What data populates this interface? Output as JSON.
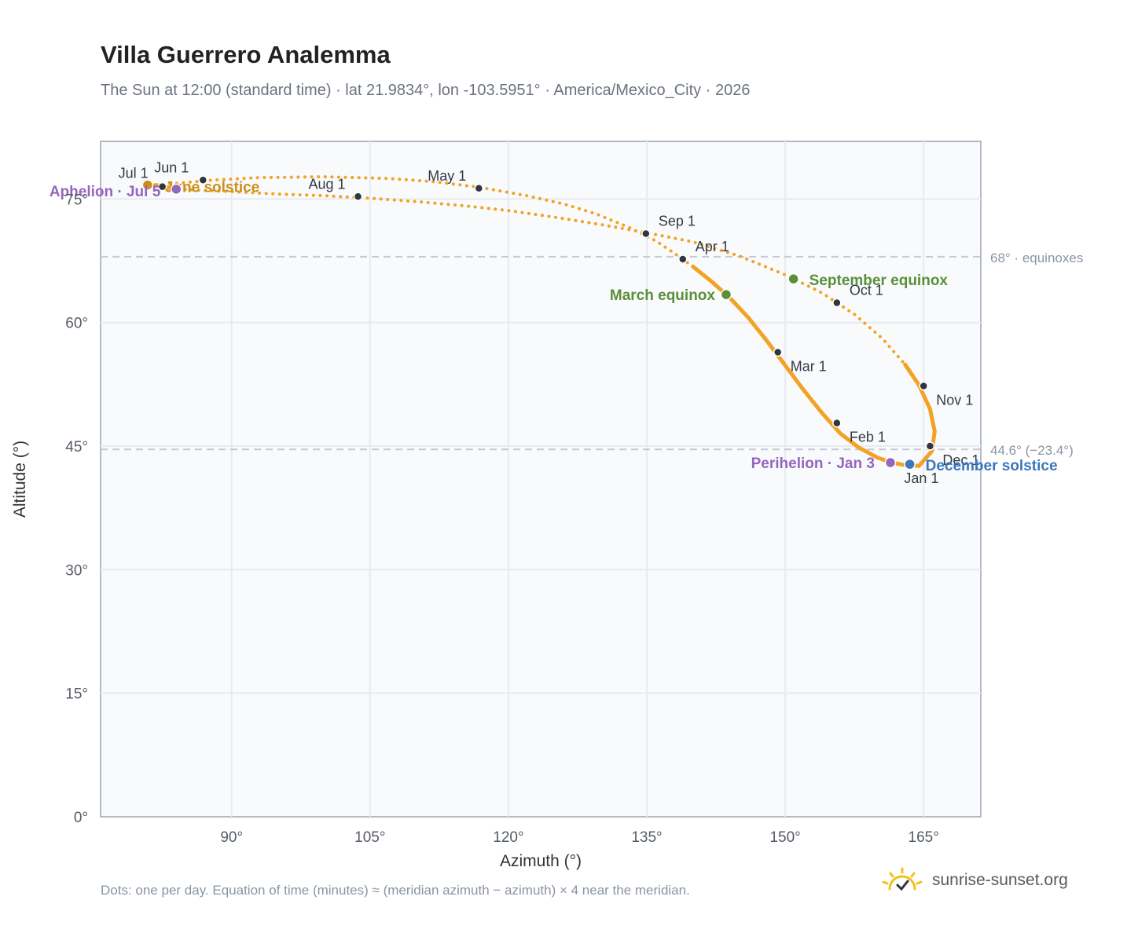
{
  "title": "Villa Guerrero Analemma",
  "subtitle": "The Sun at 12:00 (standard time) · lat 21.9834°, lon -103.5951° · America/Mexico_City · 2026",
  "footnote": "Dots: one per day. Equation of time (minutes) ≈ (meridian azimuth − azimuth) × 4 near the meridian.",
  "brand": {
    "text": "sunrise-sunset.org",
    "icon": "sun-check-icon"
  },
  "colors": {
    "curve": "#f2a325",
    "month_dot": "#2f3640",
    "equinox": "#5a8f3a",
    "december_solstice": "#3a77bd",
    "june_solstice": "#c9901c",
    "apsis": "#9467bd",
    "grid": "#e6ebf0",
    "plot_bg": "#f8fafc",
    "reference_line": "#c3cad2"
  },
  "chart_data": {
    "type": "scatter",
    "xlabel": "Azimuth (°)",
    "ylabel": "Altitude (°)",
    "xlim": [
      75.8,
      171.2
    ],
    "ylim": [
      0,
      82
    ],
    "xticks": [
      90,
      105,
      120,
      135,
      150,
      165
    ],
    "yticks": [
      0,
      15,
      30,
      45,
      60,
      75
    ],
    "xtick_labels": [
      "90°",
      "105°",
      "120°",
      "135°",
      "150°",
      "165°"
    ],
    "ytick_labels": [
      "0°",
      "15°",
      "30°",
      "45°",
      "60°",
      "75°"
    ],
    "grid": true,
    "reference_lines": [
      {
        "altitude": 68.0,
        "label": "68° · equinoxes"
      },
      {
        "altitude": 44.6,
        "label": "44.6° (−23.4°)"
      }
    ],
    "path_segments": [
      {
        "style": "solid",
        "points": [
          [
            164.5,
            42.6
          ],
          [
            163.0,
            42.7
          ],
          [
            161.5,
            43.0
          ],
          [
            160.0,
            43.6
          ],
          [
            158.0,
            44.8
          ],
          [
            156.0,
            46.5
          ],
          [
            154.0,
            49.0
          ],
          [
            152.0,
            51.8
          ],
          [
            150.0,
            54.8
          ],
          [
            148.0,
            57.8
          ],
          [
            146.0,
            60.6
          ],
          [
            144.0,
            63.0
          ],
          [
            142.0,
            65.0
          ],
          [
            140.0,
            66.8
          ]
        ]
      },
      {
        "style": "dotted",
        "points": [
          [
            140.0,
            66.8
          ],
          [
            138.0,
            68.4
          ],
          [
            136.0,
            69.9
          ],
          [
            133.0,
            71.6
          ],
          [
            129.5,
            73.2
          ],
          [
            126.0,
            74.4
          ],
          [
            122.0,
            75.4
          ],
          [
            117.0,
            76.4
          ],
          [
            112.0,
            77.1
          ],
          [
            107.0,
            77.5
          ],
          [
            100.0,
            77.7
          ],
          [
            93.0,
            77.6
          ],
          [
            88.0,
            77.3
          ],
          [
            84.0,
            76.9
          ],
          [
            81.0,
            76.7
          ]
        ]
      },
      {
        "style": "solid",
        "points": [
          [
            81.0,
            76.7
          ],
          [
            82.5,
            76.6
          ],
          [
            83.5,
            76.3
          ]
        ]
      },
      {
        "style": "dotted",
        "points": [
          [
            83.5,
            76.3
          ],
          [
            86.0,
            76.1
          ],
          [
            90.0,
            75.9
          ],
          [
            95.0,
            75.6
          ],
          [
            100.0,
            75.4
          ],
          [
            105.0,
            75.1
          ],
          [
            110.0,
            74.7
          ],
          [
            115.0,
            74.2
          ],
          [
            120.0,
            73.6
          ],
          [
            125.0,
            72.8
          ],
          [
            130.0,
            71.9
          ],
          [
            135.0,
            70.9
          ],
          [
            140.0,
            69.8
          ],
          [
            145.0,
            68.1
          ],
          [
            150.0,
            65.8
          ],
          [
            154.0,
            63.6
          ],
          [
            157.5,
            61.0
          ],
          [
            160.5,
            58.1
          ],
          [
            163.0,
            54.9
          ]
        ]
      },
      {
        "style": "solid",
        "points": [
          [
            163.0,
            54.9
          ],
          [
            164.5,
            52.4
          ],
          [
            165.7,
            49.5
          ],
          [
            166.2,
            46.8
          ],
          [
            165.9,
            44.4
          ],
          [
            164.5,
            42.6
          ]
        ]
      }
    ],
    "month_points": [
      {
        "label": "Jan 1",
        "x": 163.4,
        "y": 42.8
      },
      {
        "label": "Feb 1",
        "x": 155.6,
        "y": 47.8
      },
      {
        "label": "Mar 1",
        "x": 149.2,
        "y": 56.4
      },
      {
        "label": "Apr 1",
        "x": 138.9,
        "y": 67.7
      },
      {
        "label": "May 1",
        "x": 116.8,
        "y": 76.3
      },
      {
        "label": "Jun 1",
        "x": 86.9,
        "y": 77.3
      },
      {
        "label": "Jul 1",
        "x": 82.5,
        "y": 76.5
      },
      {
        "label": "Aug 1",
        "x": 103.7,
        "y": 75.3
      },
      {
        "label": "Sep 1",
        "x": 134.9,
        "y": 70.8
      },
      {
        "label": "Oct 1",
        "x": 155.6,
        "y": 62.4
      },
      {
        "label": "Nov 1",
        "x": 165.0,
        "y": 52.3
      },
      {
        "label": "Dec 1",
        "x": 165.7,
        "y": 45.0
      }
    ],
    "events": [
      {
        "label": "March equinox",
        "x": 143.6,
        "y": 63.4
      },
      {
        "label": "September equinox",
        "x": 150.9,
        "y": 65.3
      },
      {
        "label": "June solstice",
        "x": 80.9,
        "y": 76.7
      },
      {
        "label": "December solstice",
        "x": 163.5,
        "y": 42.8
      },
      {
        "label": "Perihelion · Jan 3",
        "x": 161.4,
        "y": 43.0
      },
      {
        "label": "Aphelion · Jul 5",
        "x": 84.0,
        "y": 76.2
      }
    ]
  }
}
